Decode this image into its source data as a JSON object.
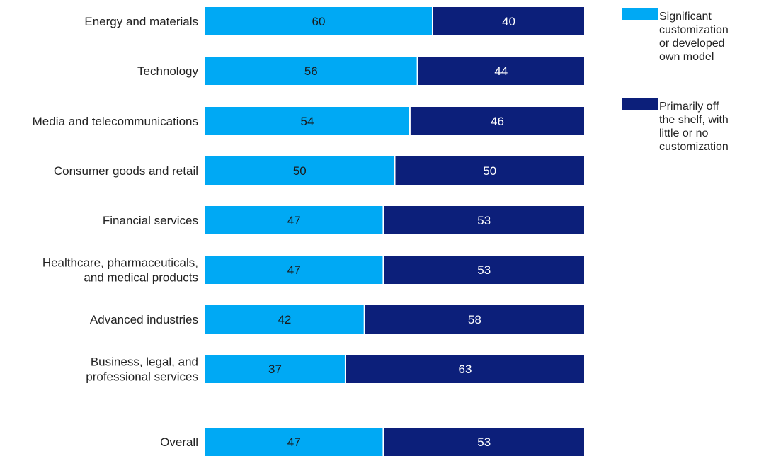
{
  "chart_data": {
    "type": "bar",
    "orientation": "horizontal",
    "stacked": true,
    "categories": [
      "Energy and materials",
      "Technology",
      "Media and telecommunications",
      "Consumer goods and retail",
      "Financial services",
      "Healthcare, pharmaceuticals, and medical products",
      "Advanced industries",
      "Business, legal, and professional services",
      "Overall"
    ],
    "category_lines": [
      [
        "Energy and materials"
      ],
      [
        "Technology"
      ],
      [
        "Media and telecommunications"
      ],
      [
        "Consumer goods and retail"
      ],
      [
        "Financial services"
      ],
      [
        "Healthcare, pharmaceuticals,",
        "and medical products"
      ],
      [
        "Advanced industries"
      ],
      [
        "Business, legal, and",
        "professional services"
      ],
      [
        "Overall"
      ]
    ],
    "series": [
      {
        "name": "Significant customization or developed own model",
        "name_lines": [
          "Significant",
          "customization",
          "or developed",
          "own model"
        ],
        "color": "#00a9f4",
        "label_color": "#1a1a1a",
        "values": [
          60,
          56,
          54,
          50,
          47,
          47,
          42,
          37,
          47
        ]
      },
      {
        "name": "Primarily off the shelf, with little or no customization",
        "name_lines": [
          "Primarily off",
          "the shelf, with",
          "little or no",
          "customization"
        ],
        "color": "#0c1f7a",
        "label_color": "#ffffff",
        "values": [
          40,
          44,
          46,
          50,
          53,
          53,
          58,
          63,
          53
        ]
      }
    ],
    "xlim": [
      0,
      100
    ],
    "grid": false,
    "legend_position": "top-right"
  }
}
